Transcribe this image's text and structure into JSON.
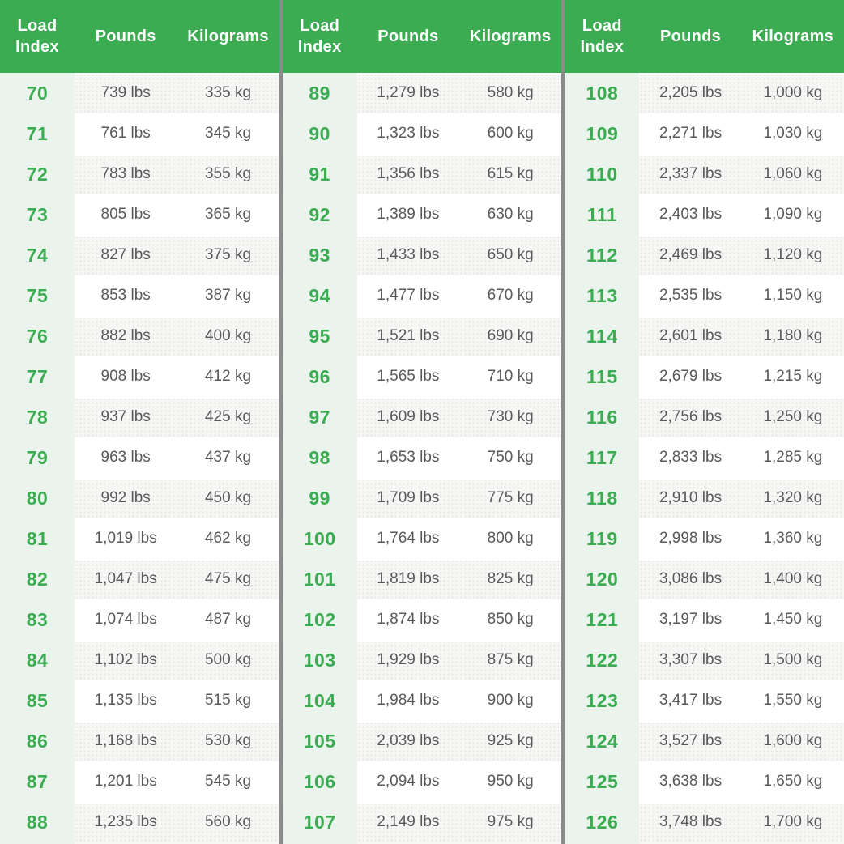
{
  "colors": {
    "header_green": "#3BAC52",
    "header_text": "#FFFFFF",
    "index_text_green": "#3BAC52",
    "index_column_bg": "#EAF3EC",
    "stripe_bg": "#F6F6F4",
    "stripe_dot": "#E3E3E0",
    "row_white": "#FFFFFF",
    "text_gray": "#58595B",
    "divider_gray": "#8A8B8D"
  },
  "chart_data": {
    "type": "table",
    "columns": [
      "Load Index",
      "Pounds",
      "Kilograms"
    ],
    "column_groups": [
      {
        "rows": [
          [
            "70",
            "739 lbs",
            "335 kg"
          ],
          [
            "71",
            "761 lbs",
            "345 kg"
          ],
          [
            "72",
            "783 lbs",
            "355 kg"
          ],
          [
            "73",
            "805 lbs",
            "365 kg"
          ],
          [
            "74",
            "827 lbs",
            "375 kg"
          ],
          [
            "75",
            "853 lbs",
            "387 kg"
          ],
          [
            "76",
            "882 lbs",
            "400 kg"
          ],
          [
            "77",
            "908 lbs",
            "412 kg"
          ],
          [
            "78",
            "937 lbs",
            "425 kg"
          ],
          [
            "79",
            "963 lbs",
            "437 kg"
          ],
          [
            "80",
            "992 lbs",
            "450 kg"
          ],
          [
            "81",
            "1,019 lbs",
            "462 kg"
          ],
          [
            "82",
            "1,047 lbs",
            "475 kg"
          ],
          [
            "83",
            "1,074 lbs",
            "487 kg"
          ],
          [
            "84",
            "1,102 lbs",
            "500 kg"
          ],
          [
            "85",
            "1,135 lbs",
            "515 kg"
          ],
          [
            "86",
            "1,168 lbs",
            "530 kg"
          ],
          [
            "87",
            "1,201 lbs",
            "545 kg"
          ],
          [
            "88",
            "1,235 lbs",
            "560 kg"
          ]
        ]
      },
      {
        "rows": [
          [
            "89",
            "1,279 lbs",
            "580 kg"
          ],
          [
            "90",
            "1,323 lbs",
            "600 kg"
          ],
          [
            "91",
            "1,356 lbs",
            "615 kg"
          ],
          [
            "92",
            "1,389 lbs",
            "630 kg"
          ],
          [
            "93",
            "1,433 lbs",
            "650 kg"
          ],
          [
            "94",
            "1,477 lbs",
            "670 kg"
          ],
          [
            "95",
            "1,521 lbs",
            "690 kg"
          ],
          [
            "96",
            "1,565 lbs",
            "710 kg"
          ],
          [
            "97",
            "1,609 lbs",
            "730 kg"
          ],
          [
            "98",
            "1,653 lbs",
            "750 kg"
          ],
          [
            "99",
            "1,709 lbs",
            "775 kg"
          ],
          [
            "100",
            "1,764 lbs",
            "800 kg"
          ],
          [
            "101",
            "1,819 lbs",
            "825 kg"
          ],
          [
            "102",
            "1,874 lbs",
            "850 kg"
          ],
          [
            "103",
            "1,929 lbs",
            "875 kg"
          ],
          [
            "104",
            "1,984 lbs",
            "900 kg"
          ],
          [
            "105",
            "2,039 lbs",
            "925 kg"
          ],
          [
            "106",
            "2,094 lbs",
            "950 kg"
          ],
          [
            "107",
            "2,149 lbs",
            "975 kg"
          ]
        ]
      },
      {
        "rows": [
          [
            "108",
            "2,205 lbs",
            "1,000 kg"
          ],
          [
            "109",
            "2,271 lbs",
            "1,030 kg"
          ],
          [
            "110",
            "2,337 lbs",
            "1,060 kg"
          ],
          [
            "111",
            "2,403 lbs",
            "1,090 kg"
          ],
          [
            "112",
            "2,469 lbs",
            "1,120 kg"
          ],
          [
            "113",
            "2,535 lbs",
            "1,150 kg"
          ],
          [
            "114",
            "2,601 lbs",
            "1,180 kg"
          ],
          [
            "115",
            "2,679 lbs",
            "1,215 kg"
          ],
          [
            "116",
            "2,756 lbs",
            "1,250 kg"
          ],
          [
            "117",
            "2,833 lbs",
            "1,285 kg"
          ],
          [
            "118",
            "2,910 lbs",
            "1,320 kg"
          ],
          [
            "119",
            "2,998 lbs",
            "1,360 kg"
          ],
          [
            "120",
            "3,086 lbs",
            "1,400 kg"
          ],
          [
            "121",
            "3,197 lbs",
            "1,450 kg"
          ],
          [
            "122",
            "3,307 lbs",
            "1,500 kg"
          ],
          [
            "123",
            "3,417 lbs",
            "1,550 kg"
          ],
          [
            "124",
            "3,527 lbs",
            "1,600 kg"
          ],
          [
            "125",
            "3,638 lbs",
            "1,650 kg"
          ],
          [
            "126",
            "3,748 lbs",
            "1,700 kg"
          ]
        ]
      }
    ]
  }
}
